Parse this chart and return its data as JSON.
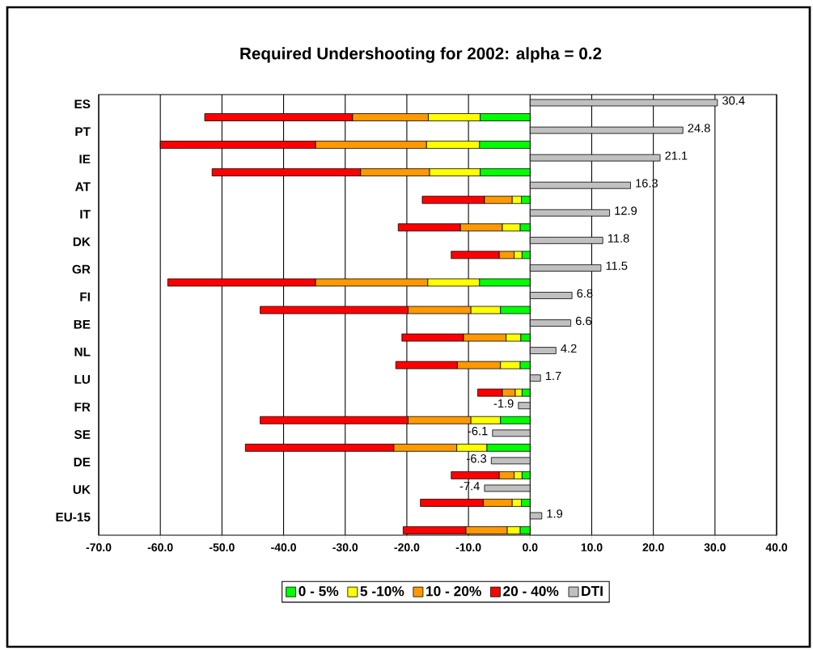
{
  "chart_data": [
    {
      "type": "bar",
      "orientation": "horizontal",
      "stacked": true,
      "title": "Required Undershooting for 2002: alpha = 0.2",
      "categories": [
        "ES",
        "PT",
        "IE",
        "AT",
        "IT",
        "DK",
        "GR",
        "FI",
        "BE",
        "NL",
        "LU",
        "FR",
        "SE",
        "DE",
        "UK",
        "EU-15"
      ],
      "series": [
        {
          "name": "0 - 5%",
          "color": "#00ff00",
          "values": [
            -8.1,
            -8.2,
            -8.1,
            -1.4,
            -1.6,
            -1.3,
            -8.2,
            -4.8,
            -1.5,
            -1.6,
            -1.3,
            -4.8,
            -7.0,
            -1.3,
            -1.4,
            -1.6
          ]
        },
        {
          "name": "5 -10%",
          "color": "#ffff00",
          "values": [
            -8.4,
            -8.6,
            -8.2,
            -1.5,
            -2.9,
            -1.3,
            -8.4,
            -4.8,
            -2.4,
            -3.2,
            -1.1,
            -4.8,
            -4.9,
            -1.3,
            -1.5,
            -2.1
          ]
        },
        {
          "name": "10 - 20%",
          "color": "#ff9900",
          "values": [
            -12.3,
            -18.0,
            -11.2,
            -4.5,
            -6.8,
            -2.4,
            -18.2,
            -10.2,
            -6.9,
            -7.0,
            -2.1,
            -10.2,
            -10.2,
            -2.4,
            -4.7,
            -6.7
          ]
        },
        {
          "name": "20 - 40%",
          "color": "#ff0000",
          "values": [
            -24.0,
            -25.2,
            -24.1,
            -10.1,
            -10.1,
            -7.8,
            -24.0,
            -24.0,
            -10.0,
            -10.0,
            -4.0,
            -24.0,
            -24.1,
            -7.8,
            -10.2,
            -10.2
          ]
        }
      ],
      "xlim": [
        -70,
        40
      ],
      "xticks": [
        {
          "value": -70,
          "label": "-70.0"
        },
        {
          "value": -60,
          "label": "-60.0"
        },
        {
          "value": -50,
          "label": "-50.0"
        },
        {
          "value": -40,
          "label": "-40.0"
        },
        {
          "value": -30,
          "label": "-30.0"
        },
        {
          "value": -20,
          "label": "-20.0"
        },
        {
          "value": -10,
          "label": "-10.0"
        },
        {
          "value": 0,
          "label": "0.0"
        },
        {
          "value": 10,
          "label": "10.0"
        },
        {
          "value": 20,
          "label": "20.0"
        },
        {
          "value": 30,
          "label": "30.0"
        },
        {
          "value": 40,
          "label": "40.0"
        }
      ],
      "grid": "x",
      "legend": "bottom"
    },
    {
      "type": "bar",
      "orientation": "horizontal",
      "categories": [
        null,
        null,
        null,
        null,
        null,
        null,
        null,
        null,
        null,
        null,
        null,
        null,
        null,
        null,
        null,
        null
      ],
      "series": [
        {
          "name": "DTI",
          "color": "#c0c0c0",
          "values": [
            30.4,
            24.8,
            21.1,
            16.3,
            12.9,
            11.8,
            11.5,
            6.8,
            6.6,
            4.2,
            1.7,
            -1.9,
            -6.1,
            -6.3,
            -7.4,
            1.9
          ],
          "value_labels": [
            "30.4",
            "24.8",
            "21.1",
            "16.3",
            "12.9",
            "11.8",
            "11.5",
            "6.8",
            "6.6",
            "4.2",
            "1.7",
            "-1.9",
            "-6.1",
            "-6.3",
            "-7.4",
            "1.9"
          ]
        }
      ],
      "xlim": [
        -70,
        40
      ],
      "tick_labels": false,
      "legend": "bottom"
    }
  ]
}
